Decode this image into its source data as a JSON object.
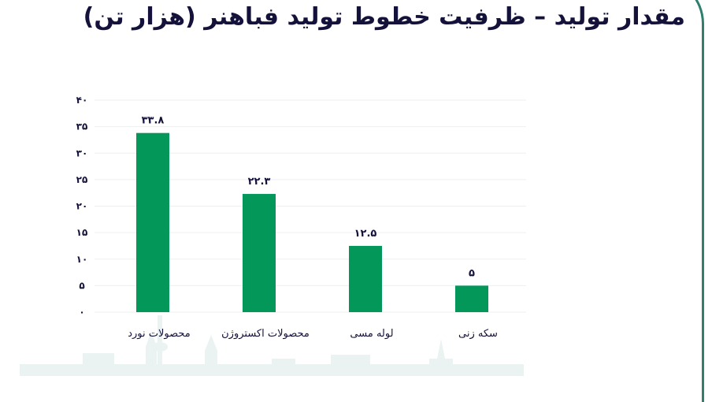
{
  "title": "مقدار تولید – ظرفیت خطوط تولید فباهنر (هزار تن)",
  "colors": {
    "bar": "#03975a",
    "text": "#14123a",
    "grid": "#eef0f0",
    "frame": "#2f7f6e"
  },
  "chart_data": {
    "type": "bar",
    "title": "مقدار تولید – ظرفیت خطوط تولید فباهنر (هزار تن)",
    "categories": [
      "محصولات نورد",
      "محصولات اکستروژن",
      "لوله مسی",
      "سکه زنی"
    ],
    "values": [
      33.8,
      22.3,
      12.5,
      5
    ],
    "data_labels": [
      "۳۳.۸",
      "۲۲.۳",
      "۱۲.۵",
      "۵"
    ],
    "yticks": [
      0,
      5,
      10,
      15,
      20,
      25,
      30,
      35,
      40
    ],
    "ytick_labels": [
      "۰",
      "۵",
      "۱۰",
      "۱۵",
      "۲۰",
      "۲۵",
      "۳۰",
      "۳۵",
      "۴۰"
    ],
    "ylim": [
      0,
      40
    ],
    "xlabel": "",
    "ylabel": "",
    "grid": true,
    "legend": "none"
  }
}
